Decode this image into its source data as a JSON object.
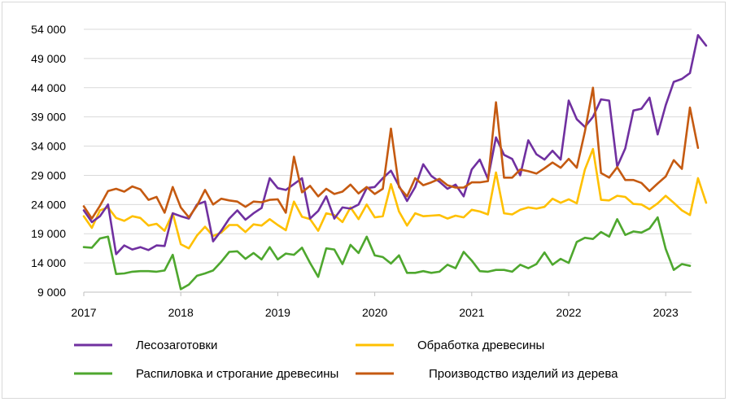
{
  "chart_data": {
    "type": "line",
    "title": "",
    "xlabel": "",
    "ylabel": "",
    "ylim": [
      9000,
      54000
    ],
    "y_ticks": [
      9000,
      14000,
      19000,
      24000,
      29000,
      34000,
      39000,
      44000,
      49000,
      54000
    ],
    "y_tick_labels": [
      "9 000",
      "14 000",
      "19 000",
      "24 000",
      "29 000",
      "34 000",
      "39 000",
      "44 000",
      "49 000",
      "54 000"
    ],
    "x_tick_labels": [
      "2017",
      "2018",
      "2019",
      "2020",
      "2021",
      "2022",
      "2023"
    ],
    "x_start": "2017-01",
    "months_per_year": 12,
    "grid": "horizontal",
    "legend_position": "bottom",
    "series": [
      {
        "name": "Лесозаготовки",
        "color": "#7030a0",
        "values": [
          23000,
          21000,
          22000,
          24000,
          15500,
          17000,
          16300,
          16700,
          16200,
          17000,
          16900,
          22500,
          22000,
          21600,
          24000,
          24500,
          17700,
          19500,
          21600,
          23000,
          21400,
          22500,
          23400,
          28500,
          26800,
          26500,
          27500,
          28500,
          21600,
          22900,
          25400,
          21600,
          23500,
          23300,
          24000,
          26800,
          27000,
          28500,
          29800,
          27200,
          24600,
          27000,
          30900,
          28900,
          27900,
          26700,
          27400,
          25400,
          30000,
          31700,
          28400,
          35500,
          32500,
          31800,
          29000,
          35000,
          32600,
          31700,
          33200,
          31700,
          41800,
          38600,
          37300,
          39000,
          42000,
          41800,
          30500,
          33600,
          40100,
          40400,
          42300,
          36000,
          41000,
          45000,
          45500,
          46500,
          53000,
          51200
        ]
      },
      {
        "name": "Обработка древесины",
        "color": "#ffc000",
        "values": [
          22000,
          20000,
          23000,
          23500,
          21700,
          21200,
          22000,
          21700,
          20400,
          20700,
          19500,
          22500,
          17200,
          16500,
          18700,
          20200,
          18600,
          19200,
          20500,
          20500,
          19300,
          20600,
          20400,
          21500,
          20500,
          19600,
          24500,
          21900,
          21500,
          19500,
          22500,
          22200,
          21000,
          23500,
          21500,
          24000,
          21800,
          22000,
          27500,
          22800,
          20400,
          22500,
          22000,
          22100,
          22200,
          21600,
          22100,
          21800,
          23100,
          22800,
          22300,
          29500,
          22500,
          22300,
          23100,
          23500,
          23300,
          23600,
          25000,
          24300,
          24900,
          24200,
          30000,
          33500,
          24800,
          24700,
          25500,
          25300,
          24100,
          24000,
          23200,
          24200,
          25500,
          24300,
          23000,
          22200,
          28500,
          24300
        ]
      },
      {
        "name": "Распиловка и строгание древесины",
        "color": "#4ea72e",
        "values": [
          16700,
          16600,
          18200,
          18500,
          12100,
          12200,
          12500,
          12600,
          12600,
          12500,
          12700,
          15400,
          9500,
          10300,
          11800,
          12200,
          12700,
          14200,
          15900,
          16000,
          14700,
          15700,
          14600,
          16700,
          14600,
          15600,
          15400,
          16600,
          14000,
          11600,
          16500,
          16300,
          13800,
          17100,
          15700,
          18500,
          15300,
          15000,
          13900,
          15300,
          12300,
          12300,
          12600,
          12300,
          12500,
          13700,
          13100,
          15900,
          14400,
          12600,
          12500,
          12800,
          12800,
          12500,
          13700,
          13100,
          13800,
          15800,
          13700,
          14700,
          14000,
          17600,
          18300,
          18100,
          19300,
          18500,
          21500,
          18800,
          19400,
          19200,
          19900,
          21800,
          16400,
          12800,
          13800,
          13500
        ]
      },
      {
        "name": "Производство изделий из дерева",
        "color": "#c55a11",
        "values": [
          23700,
          21600,
          23800,
          26300,
          26700,
          26200,
          27100,
          26600,
          24800,
          25300,
          22600,
          27000,
          23500,
          21800,
          23800,
          26500,
          24000,
          25000,
          24700,
          24500,
          23600,
          24500,
          24400,
          24800,
          24900,
          22600,
          32200,
          26100,
          27200,
          25400,
          26700,
          25800,
          26200,
          27400,
          25900,
          27000,
          25800,
          26700,
          37000,
          27000,
          25400,
          28500,
          27300,
          27800,
          28400,
          27300,
          26900,
          26900,
          27800,
          27800,
          28000,
          41500,
          28600,
          28600,
          30000,
          29700,
          29300,
          30200,
          31200,
          30300,
          31800,
          30300,
          36500,
          44000,
          29400,
          28600,
          30400,
          28200,
          28200,
          27700,
          26300,
          27600,
          28800,
          31600,
          30100,
          40600,
          33700
        ]
      }
    ]
  }
}
